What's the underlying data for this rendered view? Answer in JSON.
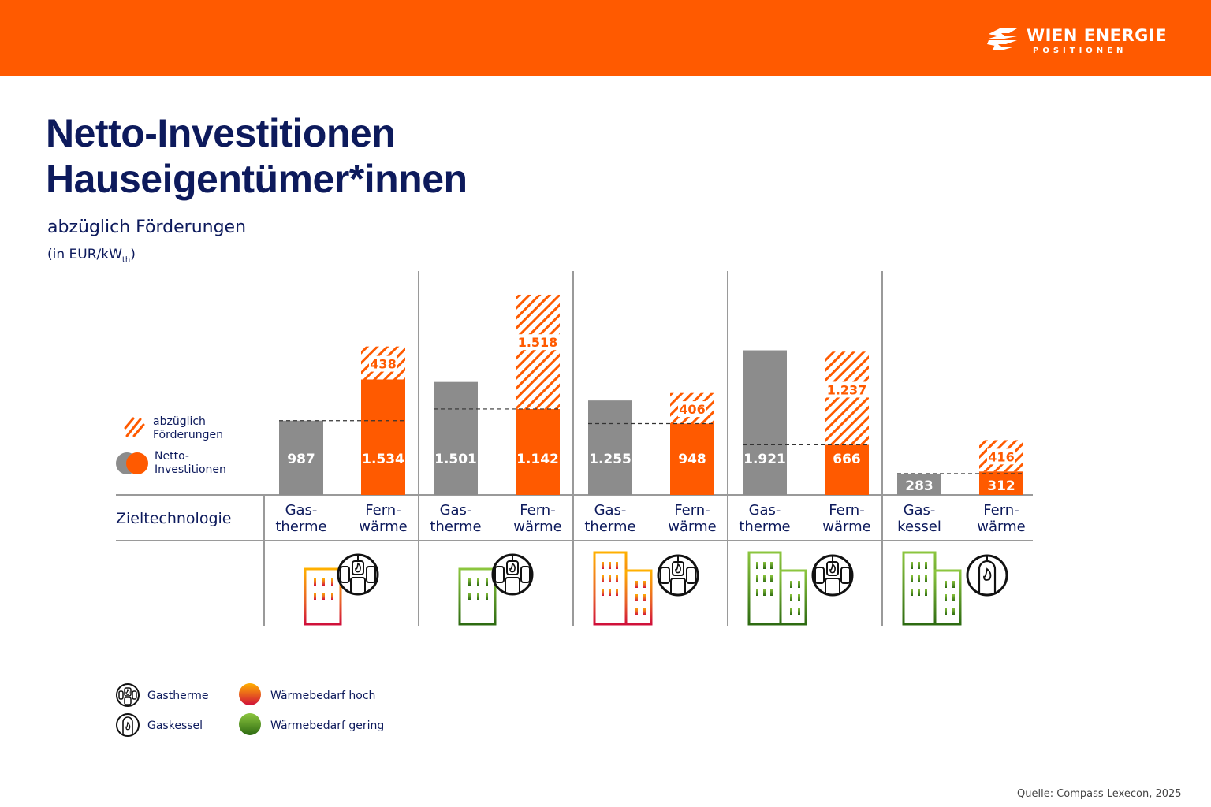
{
  "header": {
    "brand": "WIEN ENERGIE",
    "brand_sub": "POSITIONEN",
    "brand_color": "#ff5a00"
  },
  "title_line1": "Netto-Investitionen",
  "title_line2": "Hauseigentümer*innen",
  "subtitle": "abzüglich Förderungen",
  "unit_prefix": "(in EUR/kW",
  "unit_sub": "th",
  "unit_suffix": ")",
  "legend_top": {
    "subsidy_label_1": "abzüglich",
    "subsidy_label_2": "Förderungen",
    "net_label_1": "Netto-",
    "net_label_2": "Investitionen"
  },
  "row_label": "Zieltechnologie",
  "legend_bottom": {
    "gastherme": "Gastherme",
    "gaskessel": "Gaskessel",
    "high": "Wärmebedarf hoch",
    "low": "Wärmebedarf gering"
  },
  "source": "Quelle: Compass Lexecon, 2025",
  "colors": {
    "gas": "#8c8c8c",
    "fernwaerme": "#ff5a00",
    "text": "#0d1a5c",
    "high_top": "#ffb000",
    "high_bottom": "#d0103a",
    "low_top": "#8cc63f",
    "low_bottom": "#2e6b12"
  },
  "chart_data": {
    "type": "bar",
    "title": "Netto-Investitionen Hauseigentümer*innen",
    "subtitle": "abzüglich Förderungen (in EUR/kWth)",
    "ylabel": "EUR/kWth",
    "ylim": [
      0,
      2700
    ],
    "grid": false,
    "legend_position": "left",
    "groups": [
      {
        "building": "small",
        "demand": "hoch",
        "heater": "Gastherme",
        "bars": [
          {
            "label_1": "Gas-",
            "label_2": "therme",
            "kind": "gas",
            "net": 987,
            "net_label": "987"
          },
          {
            "label_1": "Fern-",
            "label_2": "wärme",
            "kind": "fernwaerme",
            "net": 1534,
            "net_label": "1.534",
            "subsidy": 438,
            "subsidy_label": "438"
          }
        ]
      },
      {
        "building": "small",
        "demand": "gering",
        "heater": "Gastherme",
        "bars": [
          {
            "label_1": "Gas-",
            "label_2": "therme",
            "kind": "gas",
            "net": 1501,
            "net_label": "1.501"
          },
          {
            "label_1": "Fern-",
            "label_2": "wärme",
            "kind": "fernwaerme",
            "net": 1142,
            "net_label": "1.142",
            "subsidy": 1518,
            "subsidy_label": "1.518"
          }
        ]
      },
      {
        "building": "large",
        "demand": "hoch",
        "heater": "Gastherme",
        "bars": [
          {
            "label_1": "Gas-",
            "label_2": "therme",
            "kind": "gas",
            "net": 1255,
            "net_label": "1.255"
          },
          {
            "label_1": "Fern-",
            "label_2": "wärme",
            "kind": "fernwaerme",
            "net": 948,
            "net_label": "948",
            "subsidy": 406,
            "subsidy_label": "406"
          }
        ]
      },
      {
        "building": "large",
        "demand": "gering",
        "heater": "Gastherme",
        "bars": [
          {
            "label_1": "Gas-",
            "label_2": "therme",
            "kind": "gas",
            "net": 1921,
            "net_label": "1.921"
          },
          {
            "label_1": "Fern-",
            "label_2": "wärme",
            "kind": "fernwaerme",
            "net": 666,
            "net_label": "666",
            "subsidy": 1237,
            "subsidy_label": "1.237"
          }
        ]
      },
      {
        "building": "large",
        "demand": "gering",
        "heater": "Gaskessel",
        "bars": [
          {
            "label_1": "Gas-",
            "label_2": "kessel",
            "kind": "gas",
            "net": 283,
            "net_label": "283"
          },
          {
            "label_1": "Fern-",
            "label_2": "wärme",
            "kind": "fernwaerme",
            "net": 312,
            "net_label": "312",
            "subsidy": 416,
            "subsidy_label": "416"
          }
        ]
      }
    ]
  }
}
